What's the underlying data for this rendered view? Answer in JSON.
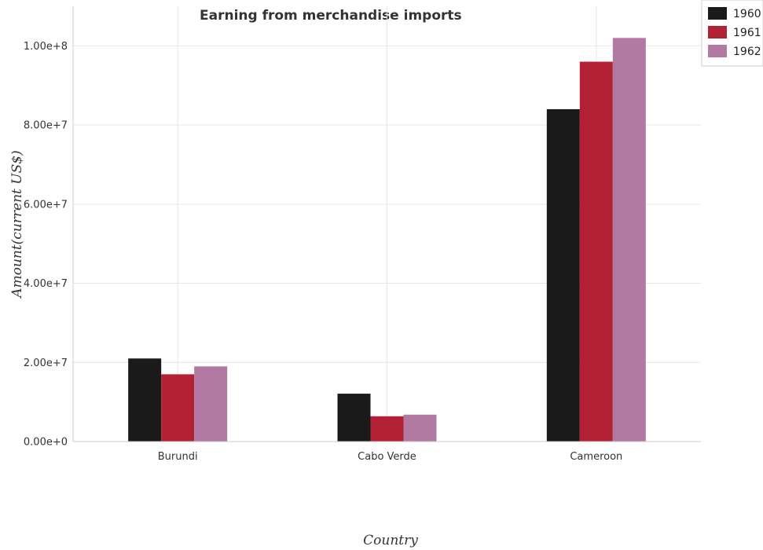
{
  "chart_data": {
    "type": "bar",
    "title": "Earning from merchandise imports",
    "xlabel": "Country",
    "ylabel": "Amount(current US$)",
    "categories": [
      "Burundi",
      "Cabo Verde",
      "Cameroon"
    ],
    "series": [
      {
        "name": "1960",
        "color": "#1a1a1a",
        "values": [
          21000000,
          12100000,
          84000000
        ]
      },
      {
        "name": "1961",
        "color": "#b22234",
        "values": [
          17000000,
          6400000,
          96000000
        ]
      },
      {
        "name": "1962",
        "color": "#b279a2",
        "values": [
          19000000,
          6800000,
          102000000
        ]
      }
    ],
    "ylim": [
      0,
      110000000
    ],
    "yticks": [
      0,
      20000000,
      40000000,
      60000000,
      80000000,
      100000000
    ],
    "ytick_labels": [
      "0.00e+0",
      "2.00e+7",
      "4.00e+7",
      "6.00e+7",
      "8.00e+7",
      "1.00e+8"
    ],
    "grid": true,
    "legend": "top-right"
  }
}
